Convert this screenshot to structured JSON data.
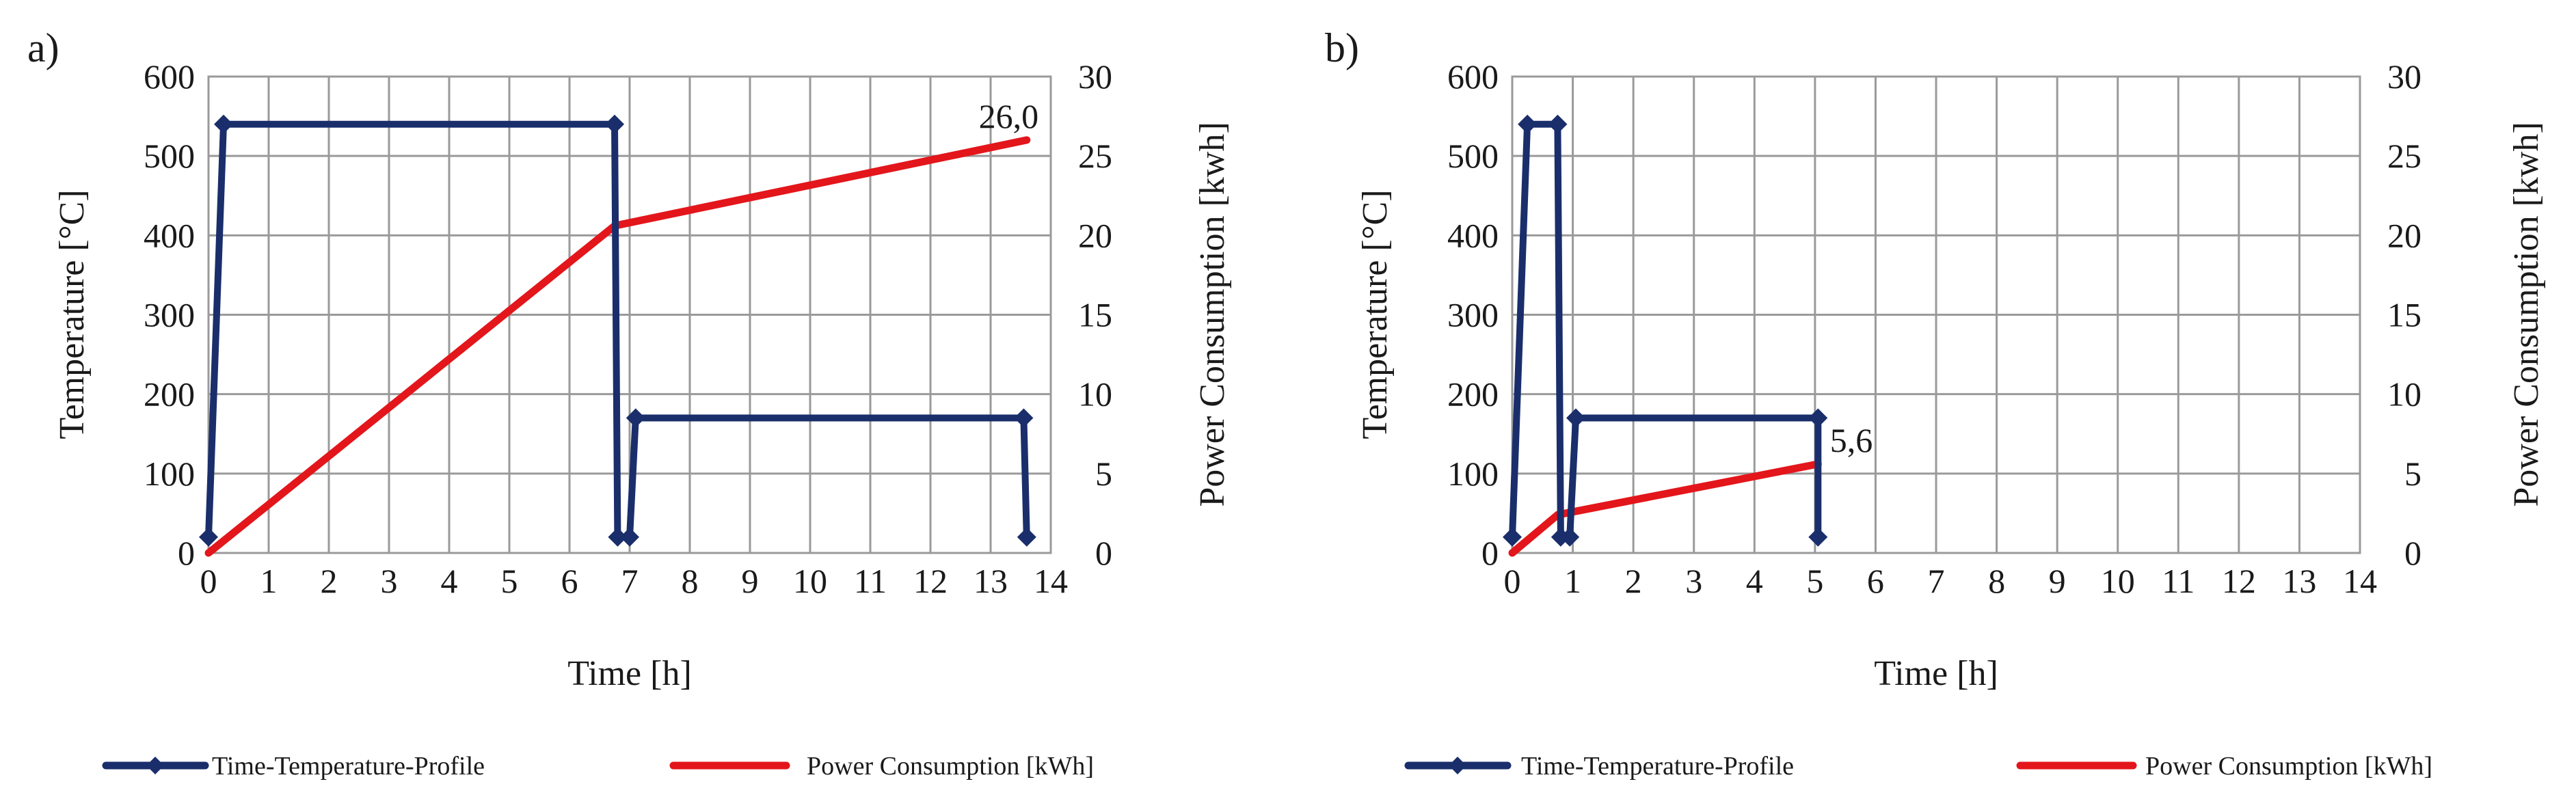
{
  "legend": {
    "temperature_label": "Time-Temperature-Profile",
    "power_label": "Power Consumption [kWh]"
  },
  "colors": {
    "temperature": "#1a2e6b",
    "power": "#e3161b",
    "grid": "#9a9a9a"
  },
  "chart_data": [
    {
      "panel_label": "a)",
      "type": "line",
      "xlabel": "Time [h]",
      "ylabel_left": "Temperature [°C]",
      "ylabel_right": "Power Consumption [kwh]",
      "xlim": [
        0,
        14
      ],
      "ylim_left": [
        0,
        600
      ],
      "ylim_right": [
        0,
        30
      ],
      "x_ticks": [
        0,
        1,
        2,
        3,
        4,
        5,
        6,
        7,
        8,
        9,
        10,
        11,
        12,
        13,
        14
      ],
      "y_ticks_left": [
        0,
        100,
        200,
        300,
        400,
        500,
        600
      ],
      "y_ticks_right": [
        0,
        5,
        10,
        15,
        20,
        25,
        30
      ],
      "grid": true,
      "series": [
        {
          "name": "Time-Temperature-Profile",
          "axis": "left",
          "markers": true,
          "x": [
            0,
            0.25,
            6.75,
            6.8,
            7.0,
            7.1,
            13.55,
            13.6
          ],
          "y": [
            20,
            540,
            540,
            20,
            20,
            170,
            170,
            20
          ]
        },
        {
          "name": "Power Consumption [kWh]",
          "axis": "right",
          "markers": false,
          "x": [
            0,
            6.75,
            13.6
          ],
          "y": [
            0,
            20.6,
            26.0
          ]
        }
      ],
      "annotation": {
        "text": "26,0",
        "x": 13.3,
        "y": 26.0,
        "axis": "right"
      }
    },
    {
      "panel_label": "b)",
      "type": "line",
      "xlabel": "Time [h]",
      "ylabel_left": "Temperature [°C]",
      "ylabel_right": "Power Consumption [kwh]",
      "xlim": [
        0,
        14
      ],
      "ylim_left": [
        0,
        600
      ],
      "ylim_right": [
        0,
        30
      ],
      "x_ticks": [
        0,
        1,
        2,
        3,
        4,
        5,
        6,
        7,
        8,
        9,
        10,
        11,
        12,
        13,
        14
      ],
      "y_ticks_left": [
        0,
        100,
        200,
        300,
        400,
        500,
        600
      ],
      "y_ticks_right": [
        0,
        5,
        10,
        15,
        20,
        25,
        30
      ],
      "grid": true,
      "series": [
        {
          "name": "Time-Temperature-Profile",
          "axis": "left",
          "markers": true,
          "x": [
            0,
            0.25,
            0.75,
            0.8,
            0.95,
            1.05,
            5.05,
            5.05
          ],
          "y": [
            20,
            540,
            540,
            20,
            20,
            170,
            170,
            20
          ]
        },
        {
          "name": "Power Consumption [kWh]",
          "axis": "right",
          "markers": false,
          "x": [
            0,
            0.75,
            5.05
          ],
          "y": [
            0,
            2.4,
            5.6
          ]
        }
      ],
      "annotation": {
        "text": "5,6",
        "x": 5.6,
        "y": 5.6,
        "axis": "right"
      }
    }
  ]
}
